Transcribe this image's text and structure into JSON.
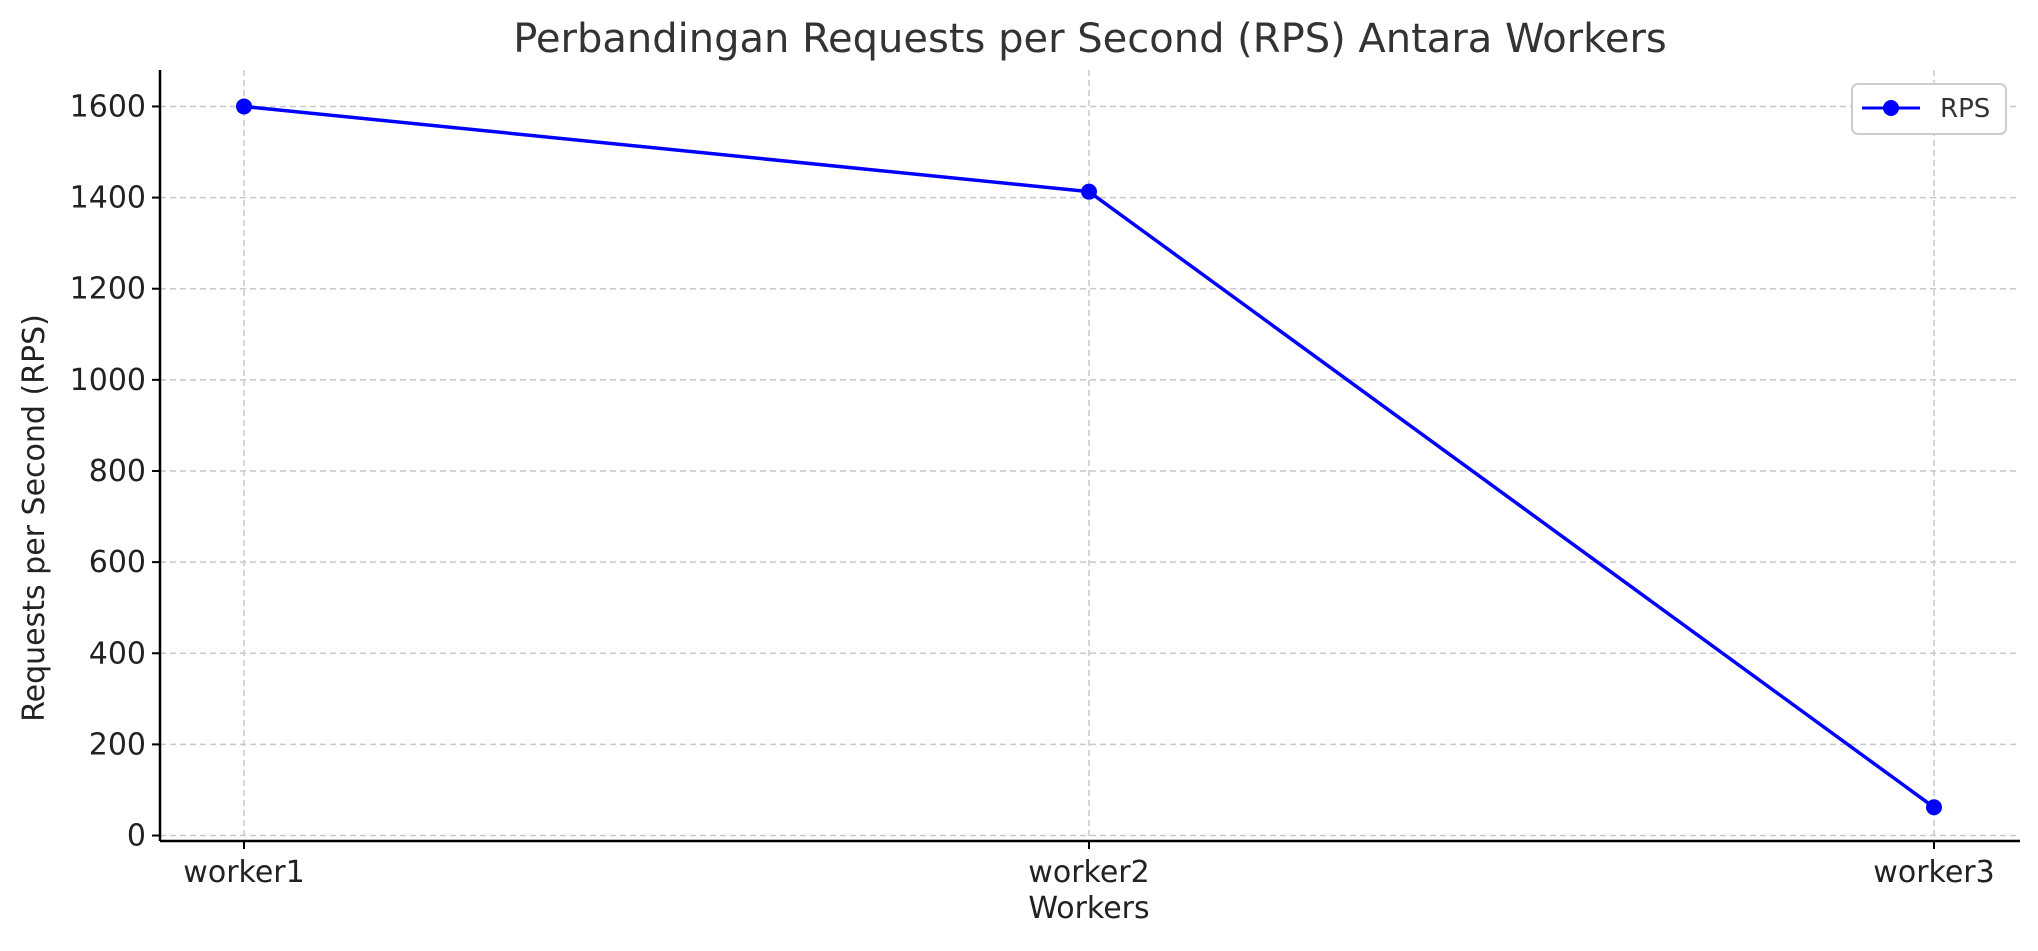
{
  "chart_data": {
    "type": "line",
    "title": "Perbandingan Requests per Second (RPS) Antara Workers",
    "xlabel": "Workers",
    "ylabel": "Requests per Second (RPS)",
    "categories": [
      "worker1",
      "worker2",
      "worker3"
    ],
    "series": [
      {
        "name": "RPS",
        "values": [
          1600,
          1413,
          62
        ],
        "color": "#0000ff"
      }
    ],
    "ylim": [
      -12,
      1680
    ],
    "yticks": [
      0,
      200,
      400,
      600,
      800,
      1000,
      1200,
      1400,
      1600
    ],
    "grid": true,
    "legend_position": "top-right",
    "colors": {
      "title": "#333333",
      "text": "#222222",
      "grid": "#c8c8c8",
      "axis": "#000000"
    }
  }
}
